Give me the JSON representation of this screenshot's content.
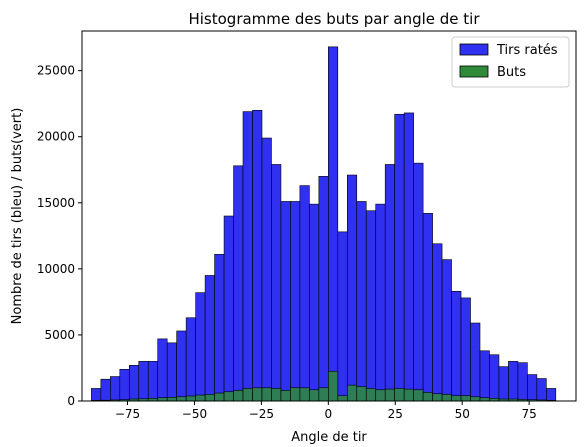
{
  "chart_data": {
    "type": "bar",
    "title": "Histogramme des buts par angle de tir",
    "xlabel": "Angle de tir",
    "ylabel": "Nombre de tirs (bleu) / buts(vert)",
    "xlim": [
      -92,
      92.5
    ],
    "ylim": [
      0,
      28000
    ],
    "xticks": [
      -75,
      -50,
      -25,
      0,
      25,
      50,
      75
    ],
    "xtick_labels": [
      "−75",
      "−50",
      "−25",
      "0",
      "25",
      "50",
      "75"
    ],
    "yticks": [
      0,
      5000,
      10000,
      15000,
      20000,
      25000
    ],
    "ytick_labels": [
      "0",
      "5000",
      "10000",
      "15000",
      "20000",
      "25000"
    ],
    "grid": false,
    "legend_position": "top-right",
    "bin_start": -88.5,
    "bin_width": 3.54,
    "series": [
      {
        "name": "Tirs ratés",
        "color": "#3030f0",
        "values": [
          950,
          1650,
          1850,
          2400,
          2700,
          3000,
          3000,
          4700,
          4400,
          5300,
          6300,
          8200,
          9500,
          11100,
          14000,
          17800,
          21900,
          22000,
          19900,
          17900,
          15100,
          15100,
          16300,
          14900,
          17000,
          26800,
          12800,
          17100,
          15100,
          14400,
          14900,
          17900,
          21700,
          21800,
          18000,
          14200,
          11900,
          10700,
          8300,
          7800,
          5900,
          3800,
          3500,
          2600,
          3000,
          2900,
          2000,
          1700,
          950
        ]
      },
      {
        "name": "Buts",
        "color": "#2e8b3a",
        "values": [
          50,
          60,
          80,
          100,
          150,
          170,
          200,
          250,
          280,
          320,
          380,
          450,
          500,
          600,
          700,
          800,
          950,
          1000,
          1000,
          950,
          800,
          1000,
          1000,
          850,
          1000,
          2250,
          400,
          1200,
          1100,
          950,
          850,
          900,
          950,
          900,
          850,
          650,
          550,
          500,
          400,
          400,
          320,
          250,
          200,
          150,
          150,
          120,
          100,
          80,
          50
        ]
      }
    ]
  }
}
